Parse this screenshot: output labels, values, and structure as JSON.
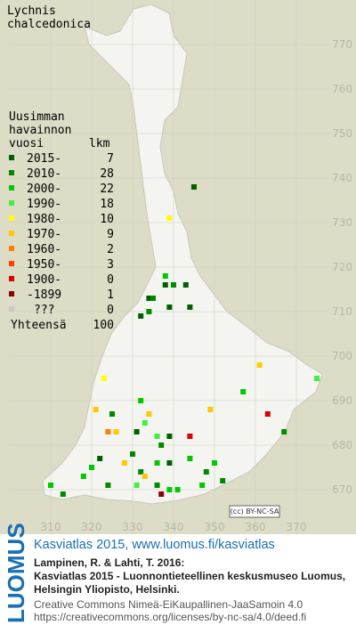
{
  "map": {
    "species": [
      "Lychnis",
      "chalcedonica"
    ],
    "legend": {
      "header": [
        "Uusimman",
        "havainnon",
        "vuosi"
      ],
      "count_header": "lkm",
      "rows": [
        {
          "label": "2015-",
          "count": 7,
          "color": "#006000"
        },
        {
          "label": "2010-",
          "count": 28,
          "color": "#008a00"
        },
        {
          "label": "2000-",
          "count": 22,
          "color": "#00c800"
        },
        {
          "label": "1990-",
          "count": 18,
          "color": "#40f040"
        },
        {
          "label": "1980-",
          "count": 10,
          "color": "#ffff00"
        },
        {
          "label": "1970-",
          "count": 9,
          "color": "#ffc800"
        },
        {
          "label": "1960-",
          "count": 2,
          "color": "#ff8000"
        },
        {
          "label": "1950-",
          "count": 3,
          "color": "#ff4000"
        },
        {
          "label": "1900-",
          "count": 0,
          "color": "#dd0000"
        },
        {
          "label": "-1899",
          "count": 1,
          "color": "#900000"
        },
        {
          "label": "???",
          "count": 0,
          "color": "#c8c8c8"
        }
      ],
      "total_label": "Yhteensä",
      "total": 100
    },
    "xlim": [
      300,
      380
    ],
    "ylim": [
      660,
      780
    ],
    "xticks": [
      310,
      320,
      330,
      340,
      350,
      360,
      370
    ],
    "yticks": [
      670,
      680,
      690,
      700,
      710,
      720,
      730,
      740,
      750,
      760,
      770
    ],
    "observations": [
      [
        345,
        738,
        0
      ],
      [
        339,
        731,
        4
      ],
      [
        338,
        718,
        2
      ],
      [
        340,
        716,
        1
      ],
      [
        343,
        716,
        0
      ],
      [
        338,
        716,
        0
      ],
      [
        334,
        713,
        0
      ],
      [
        335,
        713,
        1
      ],
      [
        339,
        711,
        0
      ],
      [
        344,
        711,
        0
      ],
      [
        332,
        709,
        0
      ],
      [
        334,
        710,
        1
      ],
      [
        323,
        695,
        4
      ],
      [
        361,
        698,
        5
      ],
      [
        375,
        695,
        3
      ],
      [
        357,
        692,
        2
      ],
      [
        332,
        690,
        2
      ],
      [
        321,
        688,
        5
      ],
      [
        349,
        688,
        5
      ],
      [
        325,
        687,
        1
      ],
      [
        334,
        687,
        5
      ],
      [
        363,
        687,
        8
      ],
      [
        324,
        683,
        6
      ],
      [
        326,
        683,
        5
      ],
      [
        331,
        683,
        0
      ],
      [
        336,
        682,
        3
      ],
      [
        339,
        682,
        0
      ],
      [
        344,
        682,
        8
      ],
      [
        367,
        683,
        1
      ],
      [
        337,
        680,
        1
      ],
      [
        330,
        678,
        1
      ],
      [
        328,
        676,
        5
      ],
      [
        322,
        677,
        0
      ],
      [
        320,
        675,
        2
      ],
      [
        318,
        673,
        2
      ],
      [
        336,
        676,
        2
      ],
      [
        344,
        677,
        2
      ],
      [
        350,
        676,
        2
      ],
      [
        339,
        676,
        0
      ],
      [
        348,
        674,
        1
      ],
      [
        332,
        674,
        1
      ],
      [
        333,
        673,
        5
      ],
      [
        331,
        671,
        3
      ],
      [
        337,
        669,
        9
      ],
      [
        341,
        670,
        2
      ],
      [
        347,
        671,
        2
      ],
      [
        352,
        672,
        1
      ],
      [
        324,
        671,
        1
      ],
      [
        310,
        671,
        2
      ],
      [
        313,
        669,
        1
      ],
      [
        333,
        685,
        3
      ],
      [
        336,
        671,
        1
      ],
      [
        339,
        670,
        2
      ]
    ],
    "cc_badge": "(cc) BY-NC-SA"
  },
  "footer": {
    "logo": "LUOMUS",
    "link": "Kasviatlas 2015, www.luomus.fi/kasviatlas",
    "citation": [
      "Lampinen, R. & Lahti, T. 2016:",
      "Kasviatlas 2015 - Luonnontieteellinen keskusmuseo Luomus,",
      "Helsingin Yliopisto, Helsinki."
    ],
    "license": [
      "Creative Commons Nimeä-EiKaupallinen-JaaSamoin 4.0",
      "https://creativecommons.org/licenses/by-nc-sa/4.0/deed.fi"
    ]
  }
}
